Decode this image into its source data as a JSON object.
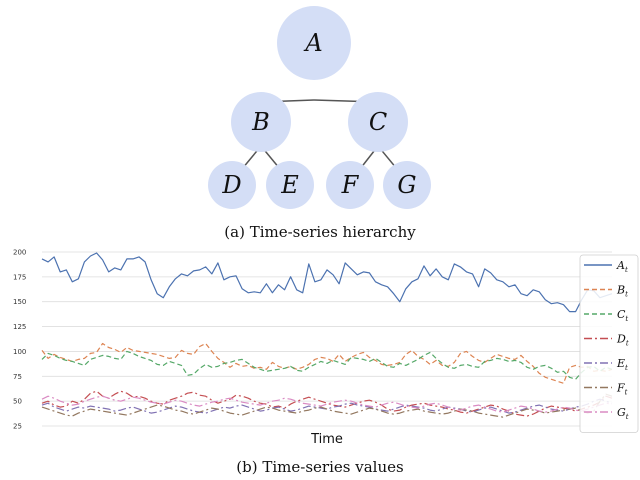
{
  "hierarchy": {
    "node_color": "#d4def6",
    "edge_color": "#555555",
    "nodes": [
      {
        "id": "A",
        "label": "A"
      },
      {
        "id": "B",
        "label": "B"
      },
      {
        "id": "C",
        "label": "C"
      },
      {
        "id": "D",
        "label": "D"
      },
      {
        "id": "E",
        "label": "E"
      },
      {
        "id": "F",
        "label": "F"
      },
      {
        "id": "G",
        "label": "G"
      }
    ],
    "edges": [
      [
        "A",
        "B"
      ],
      [
        "A",
        "C"
      ],
      [
        "B",
        "D"
      ],
      [
        "B",
        "E"
      ],
      [
        "C",
        "F"
      ],
      [
        "C",
        "G"
      ]
    ]
  },
  "captions": {
    "a": "(a) Time-series hierarchy",
    "b": "(b) Time-series values"
  },
  "chart_data": {
    "type": "line",
    "title": "",
    "xlabel": "Time",
    "ylabel": "",
    "ylim": [
      20,
      205
    ],
    "yticks": [
      25,
      50,
      75,
      100,
      125,
      150,
      175,
      200
    ],
    "grid": "horizontal",
    "legend_position": "top-right",
    "series": [
      {
        "name": "A",
        "sub": "t",
        "color": "#4c72b0",
        "dash": "",
        "values": [
          193,
          190,
          195,
          180,
          182,
          170,
          173,
          190,
          196,
          199,
          192,
          180,
          184,
          182,
          193,
          193,
          195,
          190,
          172,
          158,
          154,
          165,
          173,
          178,
          176,
          181,
          182,
          185,
          178,
          189,
          172,
          175,
          176,
          163,
          159,
          160,
          159,
          168,
          159,
          167,
          162,
          175,
          162,
          159,
          188,
          170,
          172,
          182,
          177,
          168,
          189,
          183,
          177,
          180,
          179,
          170,
          167,
          165,
          158,
          150,
          163,
          170,
          173,
          186,
          176,
          183,
          175,
          172,
          188,
          185,
          180,
          178,
          165,
          183,
          179,
          172,
          170,
          165,
          167,
          158,
          156,
          162,
          160,
          152,
          148,
          149,
          147,
          140,
          140,
          152,
          162,
          161,
          154,
          156,
          158
        ]
      },
      {
        "name": "B",
        "sub": "t",
        "color": "#dd8452",
        "dash": "5,3",
        "values": [
          101,
          93,
          97,
          94,
          92,
          90,
          92,
          93,
          98,
          99,
          108,
          104,
          102,
          99,
          104,
          101,
          100,
          99,
          98,
          97,
          95,
          93,
          94,
          101,
          98,
          97,
          105,
          108,
          100,
          93,
          89,
          84,
          88,
          85,
          86,
          83,
          84,
          82,
          89,
          85,
          83,
          85,
          82,
          84,
          87,
          92,
          94,
          93,
          90,
          97,
          90,
          94,
          97,
          99,
          94,
          91,
          87,
          86,
          87,
          89,
          97,
          101,
          95,
          92,
          87,
          91,
          86,
          85,
          89,
          98,
          100,
          95,
          91,
          89,
          93,
          97,
          95,
          93,
          92,
          96,
          90,
          85,
          78,
          74,
          72,
          70,
          68,
          84,
          86,
          84,
          85,
          80,
          81,
          80,
          82
        ]
      },
      {
        "name": "C",
        "sub": "t",
        "color": "#55a868",
        "dash": "5,3",
        "values": [
          92,
          98,
          96,
          93,
          91,
          90,
          88,
          86,
          92,
          94,
          96,
          95,
          93,
          92,
          100,
          98,
          95,
          93,
          91,
          87,
          86,
          90,
          88,
          86,
          76,
          77,
          83,
          87,
          84,
          85,
          88,
          89,
          91,
          92,
          88,
          84,
          82,
          80,
          81,
          82,
          83,
          85,
          81,
          80,
          84,
          87,
          90,
          88,
          91,
          89,
          87,
          94,
          93,
          92,
          90,
          93,
          89,
          85,
          84,
          88,
          86,
          89,
          92,
          96,
          99,
          93,
          88,
          84,
          83,
          86,
          87,
          85,
          84,
          90,
          91,
          93,
          92,
          90,
          91,
          89,
          84,
          82,
          85,
          86,
          83,
          79,
          80,
          74,
          72,
          79,
          84,
          85,
          80,
          84,
          82
        ]
      },
      {
        "name": "D",
        "sub": "t",
        "color": "#c44e52",
        "dash": "8,3,2,3",
        "values": [
          48,
          50,
          46,
          44,
          45,
          50,
          48,
          52,
          58,
          60,
          55,
          53,
          57,
          60,
          58,
          54,
          55,
          53,
          50,
          48,
          47,
          51,
          53,
          55,
          58,
          59,
          56,
          55,
          51,
          48,
          50,
          52,
          56,
          55,
          53,
          50,
          48,
          47,
          44,
          45,
          43,
          47,
          50,
          52,
          54,
          52,
          50,
          48,
          46,
          45,
          44,
          46,
          48,
          50,
          51,
          49,
          46,
          42,
          40,
          41,
          44,
          46,
          47,
          48,
          46,
          45,
          44,
          42,
          41,
          39,
          38,
          40,
          42,
          44,
          46,
          45,
          42,
          40,
          37,
          36,
          35,
          37,
          40,
          43,
          45,
          44,
          43,
          42,
          40,
          42,
          44,
          46,
          49,
          55,
          53
        ]
      },
      {
        "name": "E",
        "sub": "t",
        "color": "#8172b3",
        "dash": "8,3,2,3",
        "values": [
          46,
          48,
          44,
          42,
          40,
          42,
          44,
          43,
          45,
          44,
          43,
          42,
          40,
          41,
          43,
          44,
          42,
          40,
          38,
          39,
          41,
          43,
          45,
          44,
          42,
          40,
          39,
          38,
          40,
          42,
          44,
          43,
          45,
          46,
          44,
          42,
          40,
          41,
          43,
          44,
          42,
          40,
          41,
          43,
          45,
          44,
          43,
          42,
          44,
          45,
          47,
          48,
          46,
          45,
          44,
          42,
          41,
          40,
          42,
          44,
          46,
          45,
          44,
          43,
          41,
          40,
          42,
          44,
          43,
          42,
          40,
          39,
          41,
          43,
          44,
          42,
          40,
          38,
          39,
          41,
          43,
          45,
          46,
          44,
          42,
          41,
          40,
          42,
          44,
          45,
          47,
          50,
          52,
          50,
          48
        ]
      },
      {
        "name": "F",
        "sub": "t",
        "color": "#937860",
        "dash": "8,3,2,3",
        "values": [
          44,
          42,
          40,
          38,
          36,
          35,
          38,
          40,
          42,
          41,
          40,
          39,
          38,
          37,
          36,
          38,
          40,
          42,
          44,
          46,
          45,
          43,
          41,
          40,
          38,
          37,
          39,
          41,
          43,
          42,
          40,
          38,
          37,
          36,
          38,
          40,
          42,
          44,
          43,
          41,
          40,
          39,
          38,
          40,
          41,
          43,
          44,
          42,
          40,
          39,
          38,
          37,
          39,
          41,
          43,
          42,
          40,
          38,
          37,
          38,
          40,
          41,
          42,
          40,
          39,
          38,
          37,
          38,
          40,
          42,
          41,
          40,
          38,
          37,
          36,
          35,
          34,
          36,
          38,
          40,
          42,
          41,
          40,
          38,
          39,
          40,
          41,
          42,
          43,
          40,
          38,
          40,
          50,
          57,
          55
        ]
      },
      {
        "name": "G",
        "sub": "t",
        "color": "#da8bc3",
        "dash": "8,3,2,3",
        "values": [
          52,
          55,
          53,
          50,
          48,
          46,
          47,
          50,
          52,
          54,
          55,
          53,
          51,
          50,
          52,
          54,
          53,
          51,
          49,
          48,
          47,
          49,
          51,
          50,
          48,
          46,
          45,
          47,
          49,
          50,
          52,
          53,
          51,
          49,
          48,
          47,
          46,
          48,
          50,
          51,
          53,
          52,
          50,
          48,
          47,
          46,
          45,
          47,
          49,
          50,
          51,
          50,
          48,
          46,
          45,
          44,
          46,
          48,
          49,
          47,
          45,
          44,
          43,
          45,
          47,
          48,
          46,
          44,
          42,
          41,
          43,
          45,
          46,
          44,
          42,
          40,
          39,
          41,
          43,
          45,
          44,
          42,
          40,
          39,
          40,
          42,
          44,
          43,
          41,
          40,
          42,
          44,
          46,
          48,
          47
        ]
      }
    ]
  }
}
